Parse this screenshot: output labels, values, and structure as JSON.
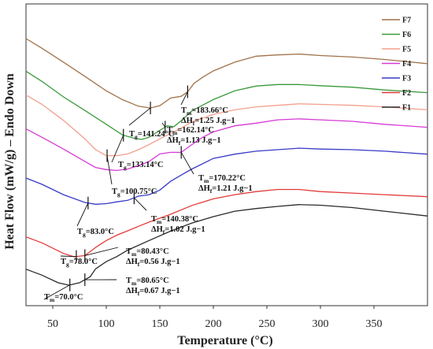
{
  "chart_data": {
    "type": "line",
    "xlabel": "Temperature (°C)",
    "ylabel": "Heat Flow (mW/g) – Endo Down",
    "xlim": [
      25,
      400
    ],
    "ylim": [
      0,
      100
    ],
    "xticks": [
      50,
      100,
      150,
      200,
      250,
      300,
      350
    ],
    "y_tick_labels_shown": false,
    "legend_position": "top-right",
    "series": [
      {
        "name": "F7",
        "color": "#a0724a",
        "x": [
          25,
          40,
          60,
          80,
          100,
          115,
          130,
          141,
          150,
          160,
          170,
          176,
          182,
          190,
          200,
          220,
          240,
          260,
          280,
          300,
          330,
          360,
          400
        ],
        "y": [
          88.5,
          85.3,
          80.7,
          76,
          71.2,
          68.3,
          66.1,
          65.5,
          66.3,
          68.8,
          69.4,
          70.9,
          73.7,
          75.7,
          77.8,
          80.7,
          82.7,
          83.1,
          83.4,
          82.9,
          82.4,
          81.6,
          80.2
        ]
      },
      {
        "name": "F6",
        "color": "#3a9a3a",
        "x": [
          25,
          40,
          60,
          80,
          100,
          115,
          125,
          133,
          140,
          150,
          157,
          163,
          170,
          180,
          200,
          220,
          240,
          260,
          280,
          300,
          330,
          360,
          400
        ],
        "y": [
          77.7,
          74.3,
          69.2,
          64.7,
          60.1,
          56.6,
          55.6,
          55.1,
          55.8,
          58.1,
          59.6,
          59.3,
          61.3,
          64.6,
          68.3,
          71.2,
          72.8,
          73.3,
          73.3,
          72.9,
          72.4,
          71.5,
          70.6
        ]
      },
      {
        "name": "F5",
        "color": "#f2a08e",
        "x": [
          25,
          40,
          60,
          80,
          90,
          100,
          110,
          120,
          130,
          140,
          150,
          160,
          170,
          180,
          200,
          220,
          240,
          260,
          280,
          300,
          330,
          360,
          400
        ],
        "y": [
          69.8,
          66.7,
          61.4,
          55.3,
          51.7,
          49.7,
          49.7,
          50.3,
          51.7,
          53.4,
          55.3,
          57.1,
          58.9,
          60.9,
          63.4,
          64.9,
          65.9,
          66.4,
          66.9,
          66.7,
          66.4,
          65.9,
          64.9
        ]
      },
      {
        "name": "F4",
        "color": "#d63ad6",
        "x": [
          25,
          40,
          60,
          80,
          90,
          100,
          110,
          120,
          130,
          140,
          150,
          160,
          170,
          180,
          190,
          200,
          220,
          240,
          260,
          280,
          300,
          330,
          360,
          400
        ],
        "y": [
          58.6,
          55.8,
          51.9,
          47.8,
          45.8,
          45.1,
          44.8,
          45.3,
          46.4,
          47.8,
          50.3,
          50.8,
          50.8,
          53.4,
          55.8,
          57.6,
          59.6,
          60.5,
          61.6,
          61.9,
          61.6,
          61.1,
          60.1,
          59.1
        ]
      },
      {
        "name": "F3",
        "color": "#3a3ac8",
        "x": [
          25,
          40,
          60,
          80,
          90,
          100,
          110,
          120,
          130,
          140,
          150,
          160,
          170,
          180,
          200,
          220,
          240,
          260,
          280,
          300,
          330,
          360,
          400
        ],
        "y": [
          42.3,
          40.2,
          36.8,
          34.2,
          33.6,
          33.8,
          34.4,
          34.9,
          36.3,
          36.8,
          38.3,
          41.2,
          43.3,
          45.3,
          48.8,
          50.2,
          51.2,
          51.7,
          52.2,
          51.9,
          51.7,
          51.2,
          50.2
        ]
      },
      {
        "name": "F2",
        "color": "#e23a3a",
        "x": [
          25,
          40,
          60,
          70,
          80,
          90,
          100,
          110,
          120,
          130,
          140,
          160,
          180,
          200,
          220,
          240,
          260,
          280,
          300,
          330,
          360,
          400
        ],
        "y": [
          22.8,
          20.8,
          17.3,
          16.2,
          16.6,
          19.3,
          21.6,
          23.4,
          24.8,
          26.3,
          27.7,
          30.3,
          33.2,
          35.4,
          36.8,
          37.8,
          38.5,
          38.5,
          37.8,
          37.3,
          36.8,
          36.1
        ]
      },
      {
        "name": "F1",
        "color": "#2a2a2a",
        "x": [
          25,
          40,
          55,
          65,
          75,
          85,
          90,
          100,
          110,
          120,
          140,
          160,
          180,
          200,
          220,
          240,
          260,
          280,
          300,
          330,
          360,
          400
        ],
        "y": [
          12.1,
          10.1,
          7.6,
          6.8,
          7.6,
          9.6,
          12.2,
          14.6,
          16.3,
          18.4,
          21.6,
          24.7,
          27.4,
          29.5,
          31.3,
          32.2,
          32.9,
          33.5,
          33.3,
          32.5,
          31.3,
          29.7
        ]
      }
    ],
    "annotations": [
      {
        "series": "F7",
        "text": "Tg=141.24°C",
        "x": 141.24
      },
      {
        "series": "F7",
        "text": "Tm=183.66°C",
        "text2": "ΔHf=1.25 J.g−1",
        "x": 176
      },
      {
        "series": "F6",
        "text": "Tg=133.14°C",
        "x": 116
      },
      {
        "series": "F6",
        "text": "Tm=162.14°C",
        "text2": "ΔHf=1.13 J.g−1",
        "x": 155
      },
      {
        "series": "F5",
        "text": "Tg=100.75°C",
        "x": 100.75
      },
      {
        "series": "F4",
        "text": "Tm=170.22°C",
        "text2": "ΔHf=1.21 J.g−1",
        "x": 170
      },
      {
        "series": "F3",
        "text": "Tg=83.0°C",
        "x": 83
      },
      {
        "series": "F3",
        "text": "Tm=140.38°C",
        "text2": "ΔHf=1.02 J.g−1",
        "x": 126
      },
      {
        "series": "F2",
        "text": "Tg=78.0°C",
        "x": 72
      },
      {
        "series": "F2",
        "text": "Tm=80.43°C",
        "text2": "ΔHf=0.56 J.g−1",
        "x": 80
      },
      {
        "series": "F1",
        "text": "Tm=70.0°C",
        "x": 66
      },
      {
        "series": "F1",
        "text": "Tm=80.65°C",
        "text2": "ΔHf=0.67 J.g−1",
        "x": 80
      }
    ]
  }
}
